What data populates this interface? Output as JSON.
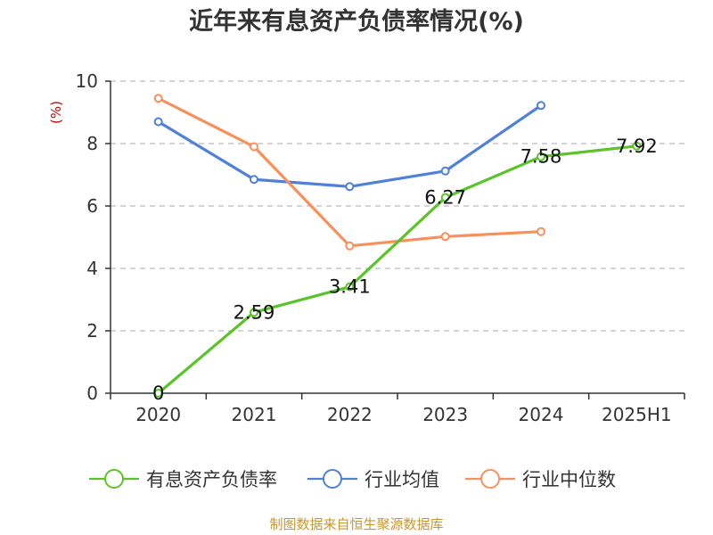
{
  "chart_data": {
    "type": "line",
    "title": "近年来有息资产负债率情况(%)",
    "ylabel": "(%)",
    "xlabel": "",
    "categories": [
      "2020",
      "2021",
      "2022",
      "2023",
      "2024",
      "2025H1"
    ],
    "y_ticks": [
      "0",
      "2",
      "4",
      "6",
      "8",
      "10"
    ],
    "ylim": [
      0,
      10
    ],
    "grid": true,
    "legend_position": "bottom",
    "series": [
      {
        "name": "有息资产负债率",
        "color": "#5bc42a",
        "values": [
          0,
          2.59,
          3.41,
          6.27,
          7.58,
          7.92
        ],
        "labels": [
          "0",
          "2.59",
          "3.41",
          "6.27",
          "7.58",
          "7.92"
        ]
      },
      {
        "name": "行业均值",
        "color": "#4f81d9",
        "values": [
          8.7,
          6.85,
          6.62,
          7.12,
          9.22,
          null
        ]
      },
      {
        "name": "行业中位数",
        "color": "#f7905a",
        "values": [
          9.45,
          7.9,
          4.72,
          5.02,
          5.18,
          null
        ]
      }
    ]
  },
  "source": "制图数据来自恒生聚源数据库"
}
